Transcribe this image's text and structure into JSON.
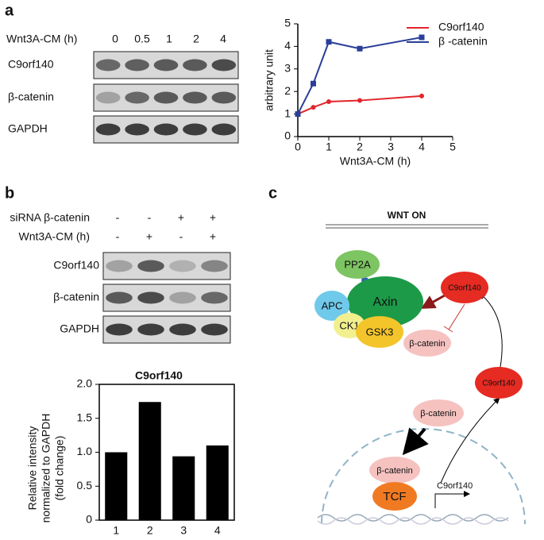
{
  "panels": {
    "a": "a",
    "b": "b",
    "c": "c"
  },
  "blot_a": {
    "header": "Wnt3A-CM (h)",
    "times": [
      "0",
      "0.5",
      "1",
      "2",
      "4"
    ],
    "rows": [
      "C9orf140",
      "β-catenin",
      "GAPDH"
    ]
  },
  "blot_b": {
    "conditions": [
      {
        "label": "siRNA β-catenin",
        "signs": [
          "-",
          "-",
          "+",
          "+"
        ]
      },
      {
        "label": "Wnt3A-CM (h)",
        "signs": [
          "-",
          "+",
          "-",
          "+"
        ]
      }
    ],
    "rows": [
      "C9orf140",
      "β-catenin",
      "GAPDH"
    ]
  },
  "chart_data": [
    {
      "type": "line",
      "xlabel": "Wnt3A-CM (h)",
      "ylabel": "arbitrary unit",
      "x": [
        0,
        0.5,
        1,
        2,
        4
      ],
      "series": [
        {
          "name": "C9orf140",
          "color": "#e2252b",
          "values": [
            1,
            1.3,
            1.55,
            1.6,
            1.8
          ]
        },
        {
          "name": "β -catenin",
          "color": "#2a3f98",
          "values": [
            1,
            2.35,
            4.2,
            3.9,
            4.4
          ]
        }
      ],
      "xlim": [
        0,
        5
      ],
      "xticks": [
        0,
        1,
        2,
        3,
        4,
        5
      ],
      "ylim": [
        0,
        5
      ],
      "yticks": [
        0,
        1,
        2,
        3,
        4,
        5
      ],
      "legend": "right"
    },
    {
      "type": "bar",
      "title": "C9orf140",
      "ylabel": [
        "Relative intensity",
        "normalized to GAPDH",
        "(fold change)"
      ],
      "categories": [
        "1",
        "2",
        "3",
        "4"
      ],
      "values": [
        1.0,
        1.74,
        0.94,
        1.1
      ],
      "color": "#000000",
      "ylim": [
        0,
        2
      ],
      "yticks": [
        0,
        0.5,
        {
          "value": 1,
          "label": "1.0"
        },
        1.5,
        {
          "value": 2,
          "label": "2.0"
        }
      ]
    }
  ],
  "diagram": {
    "title": "WNT ON",
    "nodes": [
      "PP2A",
      "Axin",
      "APC",
      "CK1",
      "GSK3",
      "β-catenin",
      "C9orf140",
      "C9orf140",
      "β-catenin",
      "β-catenin",
      "TCF"
    ],
    "gene": "C9orf140"
  }
}
